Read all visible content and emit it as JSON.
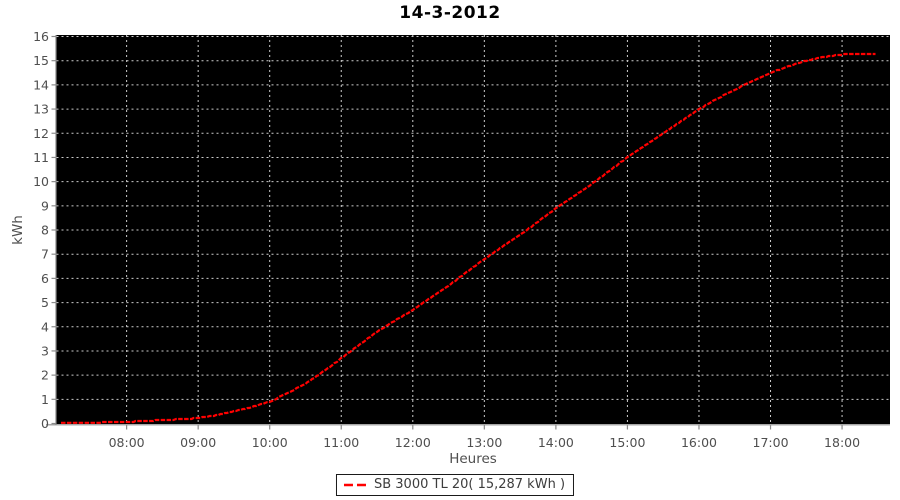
{
  "chart_data": {
    "type": "line",
    "title": "14-3-2012",
    "xlabel": "Heures",
    "ylabel": "kWh",
    "x_tick_hours": [
      8,
      9,
      10,
      11,
      12,
      13,
      14,
      15,
      16,
      17,
      18
    ],
    "x_tick_labels": [
      "08:00",
      "09:00",
      "10:00",
      "11:00",
      "12:00",
      "13:00",
      "14:00",
      "15:00",
      "16:00",
      "17:00",
      "18:00"
    ],
    "y_tick_values": [
      0,
      1,
      2,
      3,
      4,
      5,
      6,
      7,
      8,
      9,
      10,
      11,
      12,
      13,
      14,
      15,
      16
    ],
    "xlim_hours": [
      7.02,
      18.67
    ],
    "ylim": [
      0,
      16
    ],
    "grid": "dashed",
    "plot_background": "#000000",
    "gridline_color": "#cccccc",
    "axis_color": "#8a8a8a",
    "tick_label_color": "#4f4f4f",
    "legend_position": "bottom-center",
    "series": [
      {
        "name": "SB 3000 TL 20( 15,287 kWh )",
        "color": "#ff0000",
        "final_total_kwh": "15,287",
        "points": [
          [
            7.08,
            0.0
          ],
          [
            7.25,
            0.01
          ],
          [
            7.5,
            0.03
          ],
          [
            7.75,
            0.05
          ],
          [
            8.0,
            0.07
          ],
          [
            8.25,
            0.1
          ],
          [
            8.5,
            0.14
          ],
          [
            8.75,
            0.18
          ],
          [
            9.0,
            0.22
          ],
          [
            9.25,
            0.34
          ],
          [
            9.5,
            0.5
          ],
          [
            9.75,
            0.68
          ],
          [
            10.0,
            0.9
          ],
          [
            10.25,
            1.25
          ],
          [
            10.5,
            1.65
          ],
          [
            10.75,
            2.15
          ],
          [
            11.0,
            2.7
          ],
          [
            11.25,
            3.25
          ],
          [
            11.5,
            3.8
          ],
          [
            11.75,
            4.25
          ],
          [
            12.0,
            4.7
          ],
          [
            12.25,
            5.2
          ],
          [
            12.5,
            5.7
          ],
          [
            12.75,
            6.25
          ],
          [
            13.0,
            6.8
          ],
          [
            13.25,
            7.3
          ],
          [
            13.5,
            7.8
          ],
          [
            13.75,
            8.35
          ],
          [
            14.0,
            8.9
          ],
          [
            14.25,
            9.4
          ],
          [
            14.5,
            9.9
          ],
          [
            14.75,
            10.45
          ],
          [
            15.0,
            11.0
          ],
          [
            15.25,
            11.5
          ],
          [
            15.5,
            12.0
          ],
          [
            15.75,
            12.5
          ],
          [
            16.0,
            13.0
          ],
          [
            16.25,
            13.42
          ],
          [
            16.5,
            13.8
          ],
          [
            16.75,
            14.16
          ],
          [
            17.0,
            14.5
          ],
          [
            17.25,
            14.77
          ],
          [
            17.5,
            15.0
          ],
          [
            17.75,
            15.16
          ],
          [
            18.0,
            15.25
          ],
          [
            18.17,
            15.28
          ],
          [
            18.33,
            15.29
          ],
          [
            18.47,
            15.29
          ]
        ]
      }
    ]
  }
}
